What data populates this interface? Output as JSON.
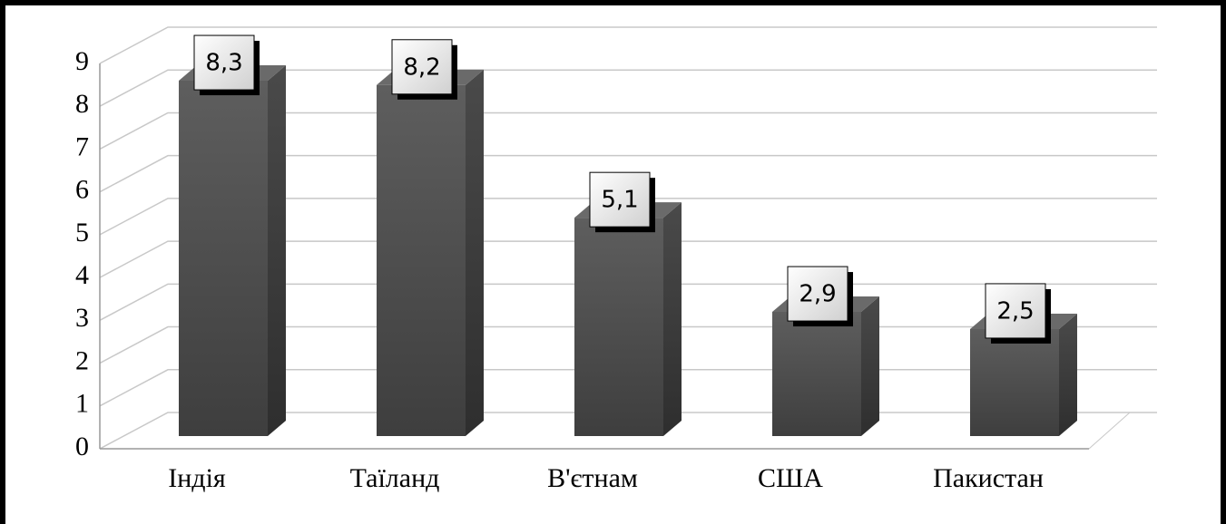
{
  "chart_data": {
    "type": "bar3d",
    "categories": [
      "Індія",
      "Таїланд",
      "В'єтнам",
      "США",
      "Пакистан"
    ],
    "values": [
      8.3,
      8.2,
      5.1,
      2.9,
      2.5
    ],
    "value_labels": [
      "8,3",
      "8,2",
      "5,1",
      "2,9",
      "2,5"
    ],
    "color": "#555555",
    "ylim": [
      0,
      9
    ],
    "yticks": [
      0,
      1,
      2,
      3,
      4,
      5,
      6,
      7,
      8,
      9
    ],
    "grid": true
  }
}
